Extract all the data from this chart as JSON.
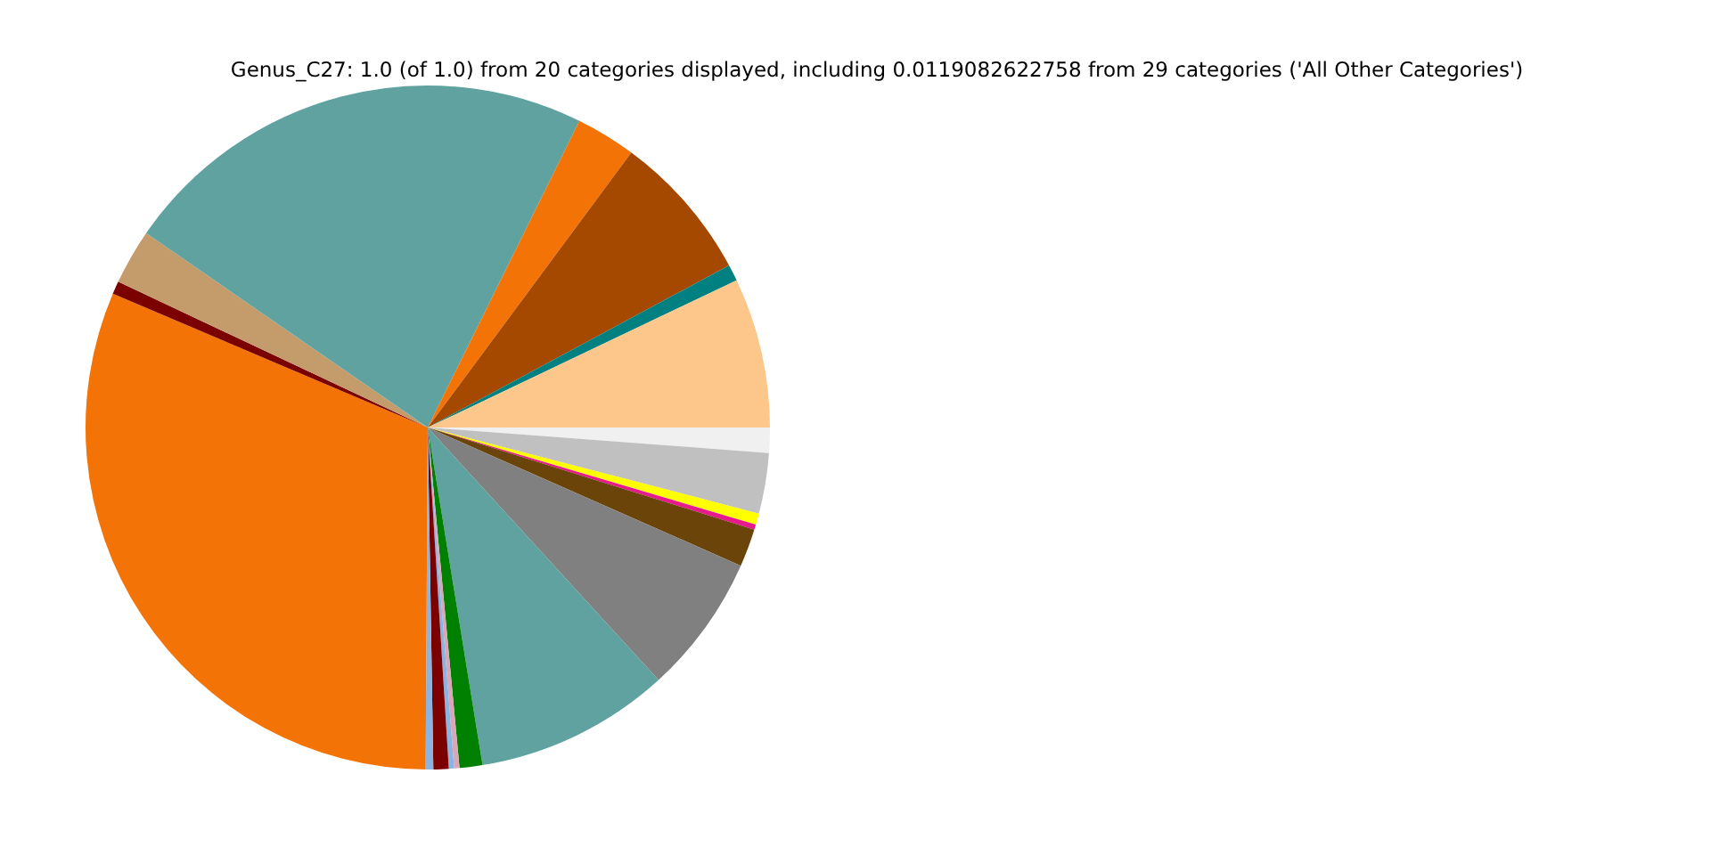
{
  "chart_data": {
    "type": "pie",
    "title": "Genus_C27: 1.0 (of 1.0) from 20 categories displayed, including 0.0119082622758 from 29 categories ('All Other Categories')",
    "categories": [
      null,
      null,
      null,
      null,
      null,
      null,
      null,
      null,
      null,
      null,
      null,
      null,
      null,
      null,
      null,
      null,
      null,
      null,
      null,
      null
    ],
    "values": [
      7.08,
      0.78,
      7.0,
      2.83,
      22.69,
      2.61,
      0.61,
      31.3,
      0.36,
      0.72,
      0.25,
      0.25,
      1.08,
      9.22,
      6.6,
      1.79,
      0.25,
      0.53,
      2.86,
      1.19
    ],
    "colors": [
      "#fdc68a",
      "#008080",
      "#a54800",
      "#f47306",
      "#5fa29f",
      "#c49c6c",
      "#7b0000",
      "#f47306",
      "#8cb4e0",
      "#7b0000",
      "#8cb4e0",
      "#d8a8b8",
      "#008000",
      "#5fa29f",
      "#808080",
      "#6b440a",
      "#e8198c",
      "#ffff00",
      "#c0c0c0",
      "#f0f0f0"
    ]
  }
}
